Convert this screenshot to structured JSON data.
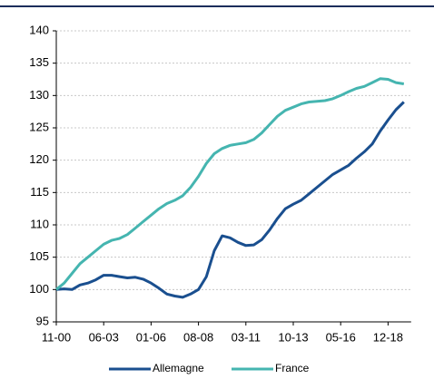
{
  "chart_data": {
    "type": "line",
    "x": [
      "11-00",
      null,
      null,
      null,
      null,
      null,
      "06-03",
      null,
      null,
      null,
      null,
      null,
      "01-06",
      null,
      null,
      null,
      null,
      null,
      "08-08",
      null,
      null,
      null,
      null,
      null,
      "03-11",
      null,
      null,
      null,
      null,
      null,
      "10-13",
      null,
      null,
      null,
      null,
      null,
      "05-16",
      null,
      null,
      null,
      null,
      null,
      "12-18",
      null,
      null
    ],
    "series": [
      {
        "name": "Allemagne",
        "color": "#1a4f8f",
        "values": [
          100,
          100.1,
          100,
          100.7,
          101,
          101.5,
          102.2,
          102.2,
          102,
          101.8,
          101.9,
          101.6,
          101,
          100.2,
          99.3,
          99,
          98.8,
          99.3,
          100,
          102,
          106,
          108.3,
          108,
          107.3,
          106.8,
          106.9,
          107.7,
          109.2,
          111,
          112.5,
          113.2,
          113.8,
          114.8,
          115.8,
          116.8,
          117.8,
          118.5,
          119.2,
          120.3,
          121.3,
          122.5,
          124.5,
          126.2,
          127.8,
          129
        ]
      },
      {
        "name": "France",
        "color": "#45b5b0",
        "values": [
          100,
          101,
          102.5,
          104,
          105,
          106,
          107,
          107.6,
          107.9,
          108.5,
          109.5,
          110.5,
          111.5,
          112.5,
          113.3,
          113.8,
          114.5,
          115.8,
          117.5,
          119.5,
          121,
          121.8,
          122.3,
          122.5,
          122.7,
          123.2,
          124.2,
          125.5,
          126.8,
          127.7,
          128.2,
          128.7,
          129,
          129.1,
          129.2,
          129.5,
          130,
          130.6,
          131.1,
          131.4,
          132,
          132.6,
          132.5,
          132,
          131.8
        ]
      }
    ],
    "ylim": [
      95,
      140
    ],
    "yticks": [
      95,
      100,
      105,
      110,
      115,
      120,
      125,
      130,
      135,
      140
    ],
    "grid": true,
    "legend": "bottom"
  }
}
